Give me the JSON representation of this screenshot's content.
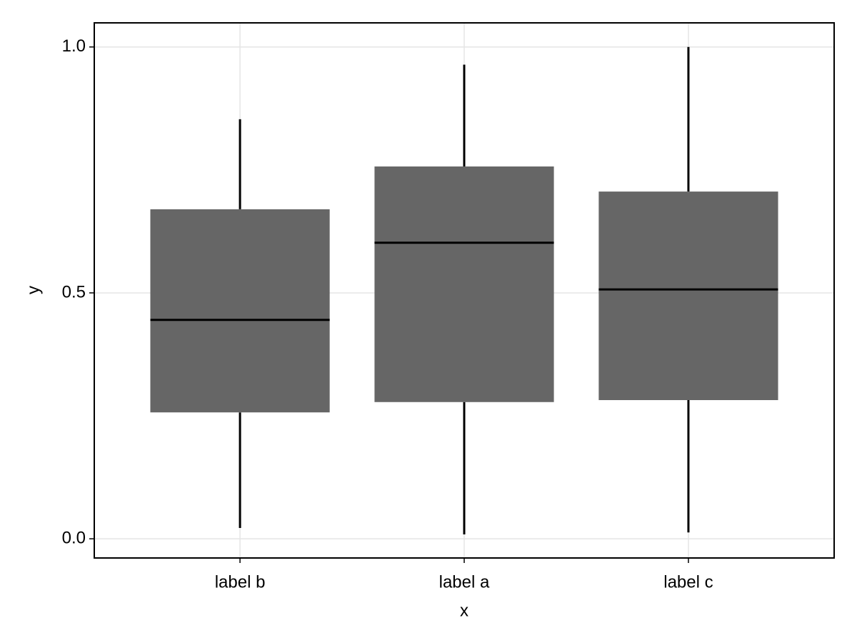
{
  "chart_data": {
    "type": "boxplot",
    "xlabel": "x",
    "ylabel": "y",
    "categories": [
      "label b",
      "label a",
      "label c"
    ],
    "min": [
      0.022,
      0.009,
      0.013
    ],
    "q1": [
      0.257,
      0.278,
      0.282
    ],
    "median": [
      0.445,
      0.602,
      0.507
    ],
    "q3": [
      0.67,
      0.757,
      0.706
    ],
    "max": [
      0.853,
      0.964,
      1.0
    ],
    "color": "#666666",
    "ylim": [
      -0.039,
      1.049
    ],
    "yticks": [
      {
        "value": 0,
        "label": "0.0"
      },
      {
        "value": 0.5,
        "label": "0.5"
      },
      {
        "value": 1,
        "label": "1.0"
      }
    ],
    "grid": true
  }
}
